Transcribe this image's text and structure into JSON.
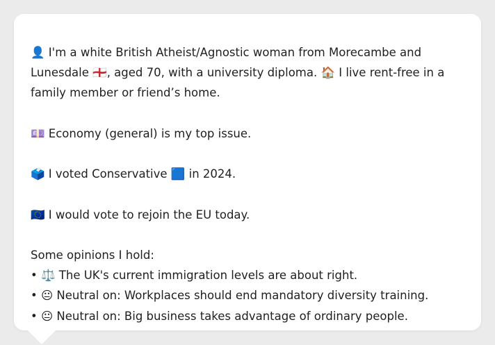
{
  "bio": {
    "line_icon": "👤",
    "intro_part1": " I'm a white British Atheist/Agnostic woman from Morecambe and Lunesdale ",
    "flag_icon": "🏴󠁧󠁢󠁥󠁮󠁧󠁿",
    "intro_part2": ", aged 70, with a university diploma. ",
    "house_icon": "🏠",
    "intro_part3": " I live rent-free in a family member or friend’s home."
  },
  "issue": {
    "icon": "💷",
    "text": " Economy (general) is my top issue."
  },
  "vote": {
    "icon": "🗳️",
    "text_part1": " I voted Conservative ",
    "party_icon": "🟦",
    "text_part2": " in 2024."
  },
  "eu": {
    "icon": "🇪🇺",
    "text": " I would vote to rejoin the EU today."
  },
  "opinions": {
    "heading": "Some opinions I hold:",
    "items": [
      {
        "bullet": "• ",
        "icon": "⚖️",
        "text": " The UK's current immigration levels are about right."
      },
      {
        "bullet": "• ",
        "icon": "😐",
        "text": " Neutral on: Workplaces should end mandatory diversity training."
      },
      {
        "bullet": "• ",
        "icon": "😐",
        "text": " Neutral on: Big business takes advantage of ordinary people."
      }
    ]
  }
}
